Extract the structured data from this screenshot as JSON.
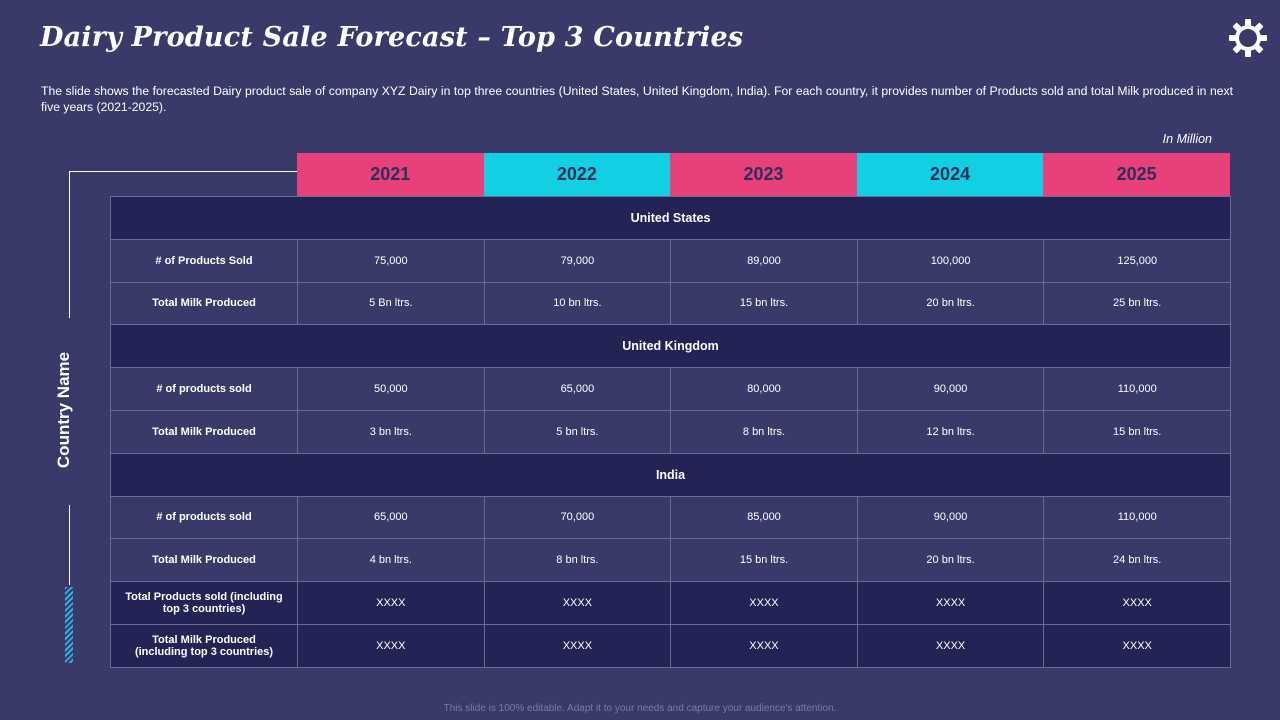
{
  "title": "Dairy Product Sale Forecast – Top 3 Countries",
  "description": "The slide shows the forecasted Dairy product sale of company XYZ Dairy in top three countries (United States, United Kingdom, India). For each country, it provides  number of Products sold and total Milk produced  in next five  years (2021-2025).",
  "unit_note": "In Million",
  "side_label": "Country Name",
  "years": [
    {
      "label": "2021",
      "color": "#e8407a"
    },
    {
      "label": "2022",
      "color": "#12cfe3"
    },
    {
      "label": "2023",
      "color": "#e8407a"
    },
    {
      "label": "2024",
      "color": "#12cfe3"
    },
    {
      "label": "2025",
      "color": "#e8407a"
    }
  ],
  "sections": [
    {
      "country": "United States",
      "rows": [
        {
          "label": "# of Products Sold",
          "values": [
            "75,000",
            "79,000",
            "89,000",
            "100,000",
            "125,000"
          ]
        },
        {
          "label": "Total Milk Produced",
          "values": [
            "5 Bn ltrs.",
            "10 bn ltrs.",
            "15 bn ltrs.",
            "20 bn ltrs.",
            "25 bn ltrs."
          ]
        }
      ]
    },
    {
      "country": "United Kingdom",
      "rows": [
        {
          "label": "# of products sold",
          "values": [
            "50,000",
            "65,000",
            "80,000",
            "90,000",
            "110,000"
          ]
        },
        {
          "label": "Total Milk Produced",
          "values": [
            "3 bn ltrs.",
            "5 bn ltrs.",
            "8 bn ltrs.",
            "12 bn ltrs.",
            "15 bn ltrs."
          ]
        }
      ]
    },
    {
      "country": "India",
      "rows": [
        {
          "label": "# of products sold",
          "values": [
            "65,000",
            "70,000",
            "85,000",
            "90,000",
            "110,000"
          ]
        },
        {
          "label": "Total Milk Produced",
          "values": [
            "4 bn ltrs.",
            "8 bn ltrs.",
            "15 bn ltrs.",
            "20 bn ltrs.",
            "24 bn ltrs."
          ]
        }
      ]
    }
  ],
  "totals": [
    {
      "label_line1": "Total Products sold (including",
      "label_line2": "top 3 countries)",
      "values": [
        "XXXX",
        "XXXX",
        "XXXX",
        "XXXX",
        "XXXX"
      ]
    },
    {
      "label_line1": "Total Milk Produced",
      "label_line2": "(including  top 3 countries)",
      "values": [
        "XXXX",
        "XXXX",
        "XXXX",
        "XXXX",
        "XXXX"
      ]
    }
  ],
  "footer": "This slide is 100% editable. Adapt it to your needs and capture your audience's attention.",
  "icon": "gear-icon"
}
